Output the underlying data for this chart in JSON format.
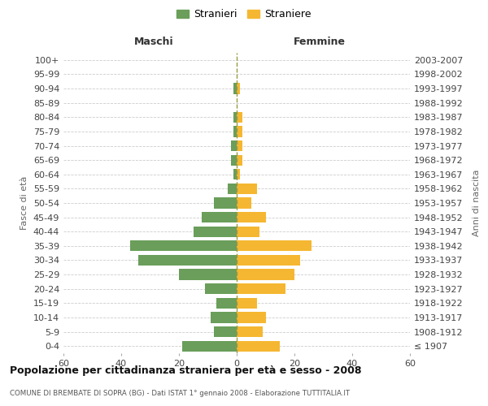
{
  "age_groups": [
    "100+",
    "95-99",
    "90-94",
    "85-89",
    "80-84",
    "75-79",
    "70-74",
    "65-69",
    "60-64",
    "55-59",
    "50-54",
    "45-49",
    "40-44",
    "35-39",
    "30-34",
    "25-29",
    "20-24",
    "15-19",
    "10-14",
    "5-9",
    "0-4"
  ],
  "birth_years": [
    "≤ 1907",
    "1908-1912",
    "1913-1917",
    "1918-1922",
    "1923-1927",
    "1928-1932",
    "1933-1937",
    "1938-1942",
    "1943-1947",
    "1948-1952",
    "1953-1957",
    "1958-1962",
    "1963-1967",
    "1968-1972",
    "1973-1977",
    "1978-1982",
    "1983-1987",
    "1988-1992",
    "1993-1997",
    "1998-2002",
    "2003-2007"
  ],
  "males": [
    0,
    0,
    1,
    0,
    1,
    1,
    2,
    2,
    1,
    3,
    8,
    12,
    15,
    37,
    34,
    20,
    11,
    7,
    9,
    8,
    19
  ],
  "females": [
    0,
    0,
    1,
    0,
    2,
    2,
    2,
    2,
    1,
    7,
    5,
    10,
    8,
    26,
    22,
    20,
    17,
    7,
    10,
    9,
    15
  ],
  "male_color": "#6a9e5a",
  "female_color": "#f5b731",
  "grid_color": "#cccccc",
  "dashed_color": "#999944",
  "title": "Popolazione per cittadinanza straniera per età e sesso - 2008",
  "subtitle": "COMUNE DI BREMBATE DI SOPRA (BG) - Dati ISTAT 1° gennaio 2008 - Elaborazione TUTTITALIA.IT",
  "xlabel_left": "Maschi",
  "xlabel_right": "Femmine",
  "ylabel_left": "Fasce di età",
  "ylabel_right": "Anni di nascita",
  "legend_male": "Stranieri",
  "legend_female": "Straniere",
  "xlim": 60
}
